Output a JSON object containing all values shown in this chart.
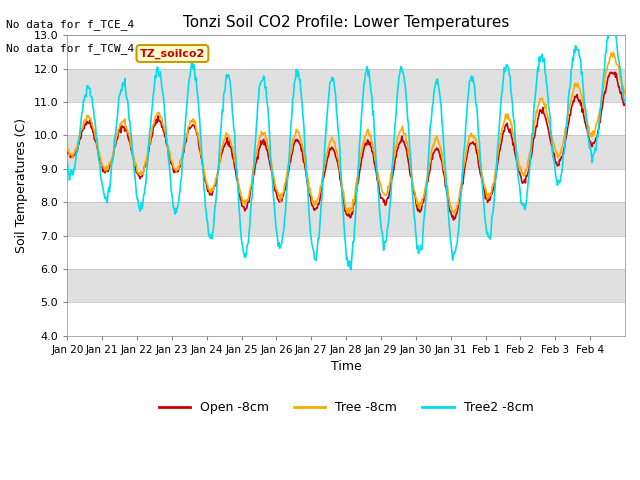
{
  "title": "Tonzi Soil CO2 Profile: Lower Temperatures",
  "xlabel": "Time",
  "ylabel": "Soil Temperatures (C)",
  "ylim": [
    4.0,
    13.0
  ],
  "yticks": [
    4.0,
    5.0,
    6.0,
    7.0,
    8.0,
    9.0,
    10.0,
    11.0,
    12.0,
    13.0
  ],
  "xtick_labels": [
    "Jan 20",
    "Jan 21",
    "Jan 22",
    "Jan 23",
    "Jan 24",
    "Jan 25",
    "Jan 26",
    "Jan 27",
    "Jan 28",
    "Jan 29",
    "Jan 30",
    "Jan 31",
    "Feb 1",
    "Feb 2",
    "Feb 3",
    "Feb 4"
  ],
  "annotation_line1": "No data for f_TCE_4",
  "annotation_line2": "No data for f_TCW_4",
  "dataset_label": "TZ_soilco2",
  "colors": {
    "open": "#cc0000",
    "tree": "#ffaa00",
    "tree2": "#00ddee",
    "dataset_bg": "#ffffcc",
    "dataset_border": "#cc9900",
    "bg_gray": "#e0e0e0",
    "bg_white": "#ffffff"
  },
  "legend": {
    "open_label": "Open -8cm",
    "tree_label": "Tree -8cm",
    "tree2_label": "Tree2 -8cm"
  },
  "linewidth": 1.2,
  "n_days": 16
}
